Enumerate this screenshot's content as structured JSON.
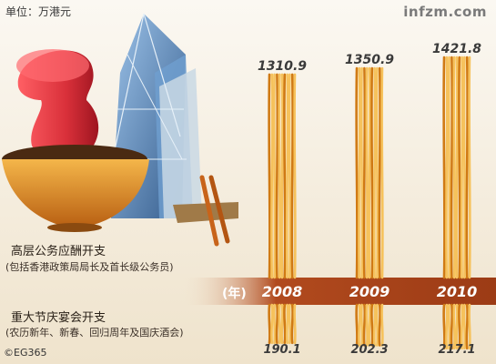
{
  "header": {
    "unit": "单位：万港元",
    "brand": "infzm.com"
  },
  "rows": {
    "top_label": "高层公务应酬开支",
    "top_sub": "(包括香港政策局局长及首长级公务员)",
    "bottom_label": "重大节庆宴会开支",
    "bottom_sub": "(农历新年、新春、回归周年及国庆酒会)",
    "year_unit": "(年)"
  },
  "credit": "©EG365",
  "colors": {
    "noodle_light": "#f6c25c",
    "noodle_dark": "#d07a14",
    "band": "#b14a1e",
    "bowl": "#e0902a",
    "cup": "#d9303a",
    "tower": "#5d8fc2"
  },
  "chart_data": {
    "type": "bar",
    "categories": [
      "2008",
      "2009",
      "2010"
    ],
    "series": [
      {
        "name": "高层公务应酬开支",
        "values": [
          1310.9,
          1350.9,
          1421.8
        ]
      },
      {
        "name": "重大节庆宴会开支",
        "values": [
          190.1,
          202.3,
          217.1
        ]
      }
    ],
    "value_labels_top": [
      "1310.9",
      "1350.9",
      "1421.8"
    ],
    "value_labels_bottom": [
      "190.1",
      "202.3",
      "217.1"
    ],
    "title": "",
    "xlabel": "",
    "ylabel": "单位：万港元"
  }
}
